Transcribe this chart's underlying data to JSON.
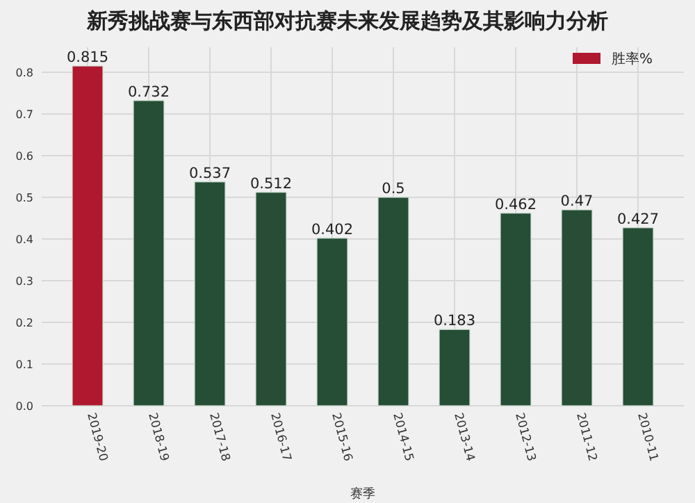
{
  "chart_data": {
    "type": "bar",
    "title": "新秀挑战赛与东西部对抗赛未来发展趋势及其影响力分析",
    "xlabel": "赛季",
    "categories": [
      "2019-20",
      "2018-19",
      "2017-18",
      "2016-17",
      "2015-16",
      "2014-15",
      "2013-14",
      "2012-13",
      "2011-12",
      "2010-11"
    ],
    "series": [
      {
        "name": "胜率%",
        "color": "#b0182f",
        "colors": [
          "#b0182f",
          "#264d36",
          "#264d36",
          "#264d36",
          "#264d36",
          "#264d36",
          "#264d36",
          "#264d36",
          "#264d36",
          "#264d36"
        ],
        "values": [
          0.815,
          0.732,
          0.537,
          0.512,
          0.402,
          0.5,
          0.183,
          0.462,
          0.47,
          0.427
        ]
      }
    ],
    "ylim": [
      0,
      0.86
    ],
    "yticks": [
      {
        "value": 0,
        "label": "0.0"
      },
      0.1,
      0.2,
      0.3,
      0.4,
      0.5,
      0.6,
      0.7,
      0.8
    ],
    "grid": true,
    "legend": "top right",
    "data_labels": true
  }
}
